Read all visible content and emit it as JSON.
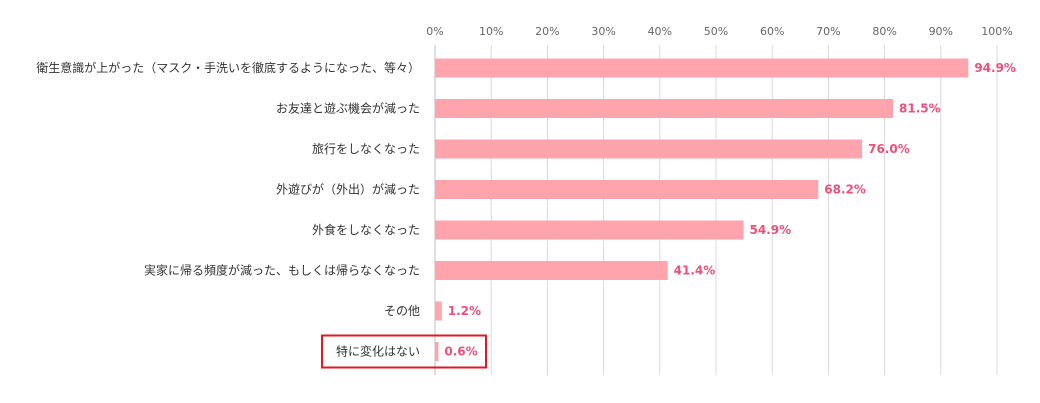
{
  "chart_data": {
    "type": "bar",
    "orientation": "horizontal",
    "categories": [
      "衛生意識が上がった（マスク・手洗いを徹底するようになった、等々）",
      "お友達と遊ぶ機会が減った",
      "旅行をしなくなった",
      "外遊びが（外出）が減った",
      "外食をしなくなった",
      "実家に帰る頻度が減った、もしくは帰らなくなった",
      "その他",
      "特に変化はない"
    ],
    "values": [
      94.9,
      81.5,
      76.0,
      68.2,
      54.9,
      41.4,
      1.2,
      0.6
    ],
    "value_labels": [
      "94.9%",
      "81.5%",
      "76.0%",
      "68.2%",
      "54.9%",
      "41.4%",
      "1.2%",
      "0.6%"
    ],
    "xlim": [
      0,
      100
    ],
    "x_ticks": [
      "0%",
      "10%",
      "20%",
      "30%",
      "40%",
      "50%",
      "60%",
      "70%",
      "80%",
      "90%",
      "100%"
    ],
    "x_axis_position": "top",
    "grid": true,
    "highlighted_category": "特に変化はない",
    "colors": {
      "bar": "#ffa3ad",
      "value_label": "#ef4f79",
      "highlight_border": "#e0181f",
      "grid": "#d9d9d9"
    }
  }
}
